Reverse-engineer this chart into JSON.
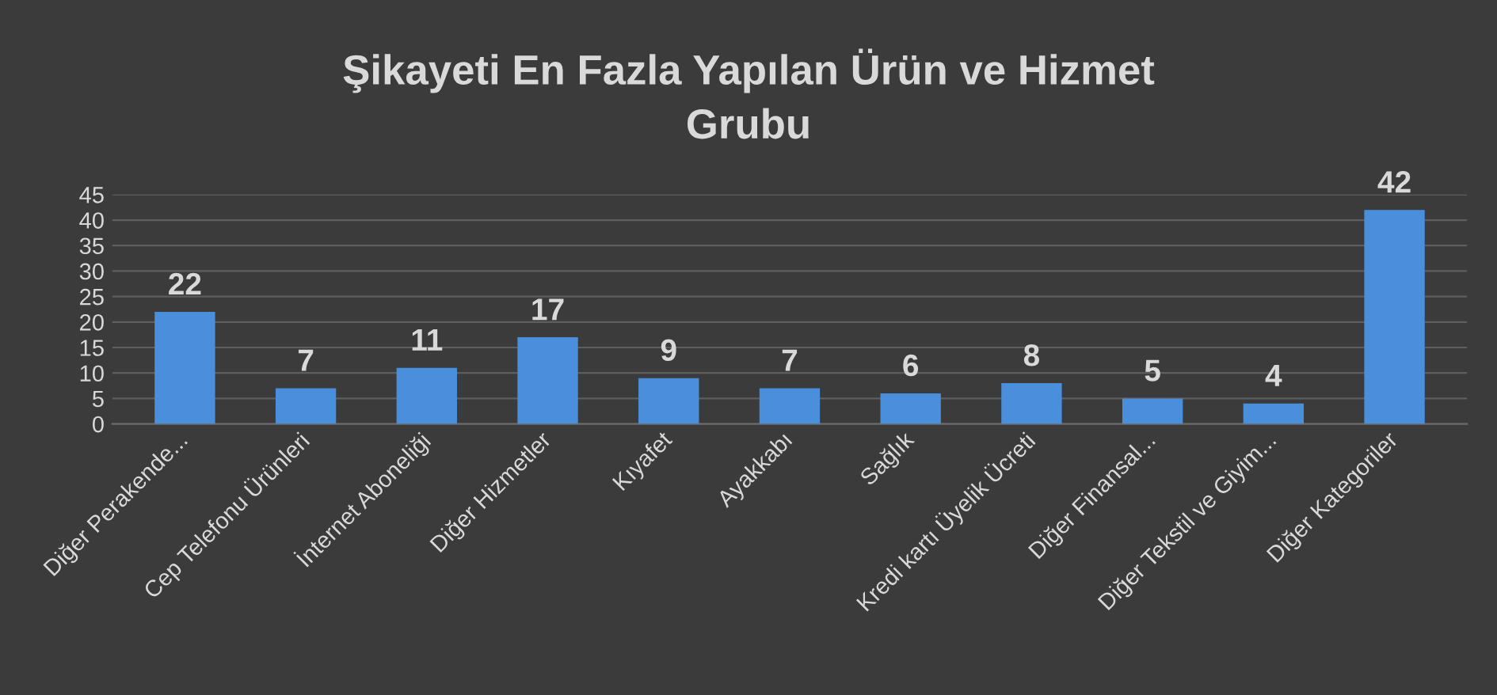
{
  "chart_data": {
    "type": "bar",
    "title": "Şikayeti En Fazla Yapılan Ürün ve Hizmet Grubu",
    "categories": [
      "Diğer Perakende...",
      "Cep Telefonu Ürünleri",
      "İnternet Aboneliği",
      "Diğer Hizmetler",
      "Kıyafet",
      "Ayakkabı",
      "Sağlık",
      "Kredi kartı Üyelik Ücreti",
      "Diğer Finansal...",
      "Diğer Tekstil ve Giyim...",
      "Diğer Kategoriler"
    ],
    "values": [
      22,
      7,
      11,
      17,
      9,
      7,
      6,
      8,
      5,
      4,
      42
    ],
    "color": "#4a8fdc",
    "ylim": [
      0,
      45
    ],
    "yticks": [
      0,
      5,
      10,
      15,
      20,
      25,
      30,
      35,
      40,
      45
    ],
    "grid": "y",
    "data_labels": true,
    "legend": false
  }
}
